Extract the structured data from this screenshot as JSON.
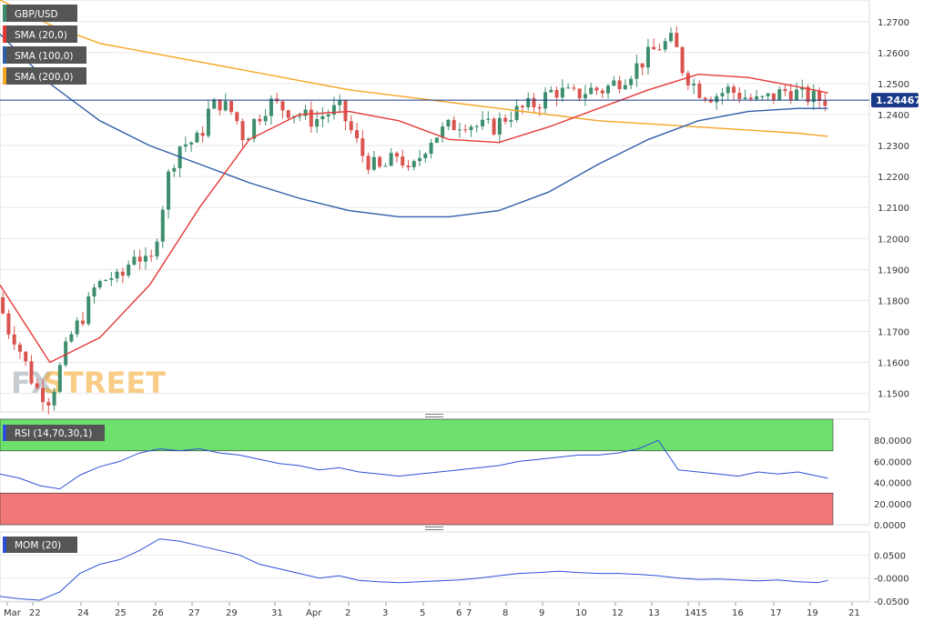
{
  "chart_data": {
    "type": "candlestick",
    "symbol": "GBP/USD",
    "current_price": "1.24467",
    "watermark": {
      "part1": "FX",
      "part2": "STREET"
    },
    "colors": {
      "bull": "#3e8e6e",
      "bear": "#d9534f",
      "sma20": "#e53935",
      "sma100": "#2f5da8",
      "sma200": "#f5a623",
      "rsi_line": "#2d4fd8",
      "mom_line": "#2d4fd8",
      "overbought_zone": "#6ee06e",
      "oversold_zone": "#f07878",
      "price_line": "#1a3a8a",
      "grid": "#e8e8e8",
      "legend_bg": "#555555"
    },
    "x_labels": [
      "Mar",
      "22",
      "24",
      "25",
      "26",
      "27",
      "29",
      "31",
      "Apr",
      "2",
      "3",
      "5",
      "6",
      "7",
      "8",
      "9",
      "10",
      "12",
      "13",
      "14",
      "15",
      "16",
      "17",
      "19",
      "21"
    ],
    "main": {
      "legend": [
        {
          "label": "GBP/USD",
          "color": "#3e8e6e"
        },
        {
          "label": "SMA (20,0)",
          "color": "#e53935"
        },
        {
          "label": "SMA (100,0)",
          "color": "#2f5da8"
        },
        {
          "label": "SMA (200,0)",
          "color": "#f5a623"
        }
      ],
      "ylim": [
        1.144,
        1.277
      ],
      "yticks": [
        "1.2700",
        "1.2600",
        "1.2500",
        "1.2400",
        "1.2300",
        "1.2200",
        "1.2100",
        "1.2000",
        "1.1900",
        "1.1800",
        "1.1700",
        "1.1600",
        "1.1500"
      ],
      "close_path": [
        1.181,
        1.172,
        1.168,
        1.16,
        1.152,
        1.148,
        1.158,
        1.168,
        1.176,
        1.184,
        1.188,
        1.186,
        1.196,
        1.19,
        1.206,
        1.222,
        1.23,
        1.232,
        1.242,
        1.244,
        1.24,
        1.232,
        1.238,
        1.244,
        1.242,
        1.24,
        1.238,
        1.24,
        1.242,
        1.236,
        1.226,
        1.222,
        1.224,
        1.228,
        1.22,
        1.226,
        1.232,
        1.236,
        1.238,
        1.236,
        1.236,
        1.24,
        1.242,
        1.244,
        1.248,
        1.246,
        1.248,
        1.248,
        1.252,
        1.256,
        1.262,
        1.264,
        1.254,
        1.248,
        1.246,
        1.248,
        1.246,
        1.244,
        1.246,
        1.248,
        1.246,
        1.245,
        1.2447
      ],
      "close_path_x": [
        0,
        0.1,
        0.3,
        0.5,
        0.7,
        1.0,
        1.2,
        1.4,
        1.7,
        1.9,
        2.2,
        2.4,
        2.7,
        3.0,
        3.2,
        3.4,
        3.6,
        4.0,
        4.2,
        4.4,
        4.7,
        4.9,
        5.1,
        5.4,
        5.7,
        6.0,
        6.3,
        6.5,
        6.8,
        7.0,
        7.3,
        7.6,
        7.8,
        8.0,
        8.2,
        8.4,
        8.6,
        9.0,
        9.3,
        9.6,
        9.9,
        10.2,
        10.5,
        10.8,
        11.1,
        11.5,
        11.8,
        12.1,
        12.5,
        12.8,
        13.2,
        13.5,
        13.7,
        14.0,
        14.3,
        14.6,
        14.9,
        15.2,
        15.5,
        15.8,
        16.1,
        16.4,
        16.6
      ],
      "x_span": [
        0,
        16.7
      ],
      "sma20": {
        "x": [
          0,
          1,
          2,
          3,
          4,
          5,
          6,
          7,
          8,
          9,
          10,
          11,
          12,
          13,
          14,
          15,
          16,
          16.6
        ],
        "y": [
          1.185,
          1.16,
          1.168,
          1.185,
          1.21,
          1.232,
          1.24,
          1.241,
          1.238,
          1.232,
          1.231,
          1.236,
          1.242,
          1.248,
          1.253,
          1.252,
          1.249,
          1.247
        ]
      },
      "sma100": {
        "x": [
          0,
          1,
          2,
          3,
          4,
          5,
          6,
          7,
          8,
          9,
          10,
          11,
          12,
          13,
          14,
          15,
          16,
          16.6
        ],
        "y": [
          1.266,
          1.25,
          1.238,
          1.23,
          1.224,
          1.218,
          1.213,
          1.209,
          1.207,
          1.207,
          1.209,
          1.215,
          1.224,
          1.232,
          1.238,
          1.241,
          1.242,
          1.242
        ]
      },
      "sma200": {
        "x": [
          0,
          1,
          2,
          3,
          4,
          5,
          6,
          7,
          8,
          9,
          10,
          11,
          12,
          13,
          14,
          15,
          16,
          16.6
        ],
        "y": [
          1.277,
          1.269,
          1.263,
          1.26,
          1.257,
          1.254,
          1.251,
          1.248,
          1.246,
          1.244,
          1.242,
          1.24,
          1.238,
          1.237,
          1.236,
          1.235,
          1.234,
          1.233
        ]
      }
    },
    "rsi": {
      "legend": "RSI (14,70,30,1)",
      "ylim": [
        0,
        100
      ],
      "overbought": 70,
      "oversold": 30,
      "yticks": [
        "80.0000",
        "60.0000",
        "40.0000",
        "20.0000",
        "0.0000"
      ],
      "x": [
        0,
        0.4,
        0.8,
        1.2,
        1.6,
        2.0,
        2.4,
        2.8,
        3.2,
        3.6,
        4.0,
        4.4,
        4.8,
        5.2,
        5.6,
        6.0,
        6.4,
        6.8,
        7.2,
        7.6,
        8.0,
        8.4,
        8.8,
        9.2,
        9.6,
        10.0,
        10.4,
        10.8,
        11.2,
        11.6,
        12.0,
        12.4,
        12.8,
        13.2,
        13.6,
        14.0,
        14.4,
        14.8,
        15.2,
        15.6,
        16.0,
        16.4,
        16.6
      ],
      "y": [
        48,
        44,
        37,
        34,
        47,
        55,
        60,
        68,
        72,
        70,
        72,
        68,
        66,
        62,
        58,
        56,
        52,
        54,
        50,
        48,
        46,
        48,
        50,
        52,
        54,
        56,
        60,
        62,
        64,
        66,
        66,
        68,
        72,
        80,
        52,
        50,
        48,
        46,
        50,
        48,
        50,
        46,
        44
      ]
    },
    "mom": {
      "legend": "MOM (20)",
      "ylim": [
        -0.052,
        0.1
      ],
      "yticks": [
        "0.0500",
        "-0.0000",
        "-0.0500"
      ],
      "x": [
        0,
        0.4,
        0.8,
        1.2,
        1.6,
        2.0,
        2.4,
        2.8,
        3.2,
        3.6,
        4.0,
        4.4,
        4.8,
        5.2,
        5.6,
        6.0,
        6.4,
        6.8,
        7.2,
        7.6,
        8.0,
        8.4,
        8.8,
        9.2,
        9.6,
        10.0,
        10.4,
        10.8,
        11.2,
        11.6,
        12.0,
        12.4,
        12.8,
        13.2,
        13.6,
        14.0,
        14.4,
        14.8,
        15.2,
        15.6,
        16.0,
        16.4,
        16.6
      ],
      "y": [
        -0.04,
        -0.045,
        -0.048,
        -0.03,
        0.01,
        0.03,
        0.04,
        0.06,
        0.085,
        0.08,
        0.07,
        0.06,
        0.05,
        0.03,
        0.02,
        0.01,
        0.0,
        0.005,
        -0.005,
        -0.008,
        -0.01,
        -0.008,
        -0.006,
        -0.004,
        0.0,
        0.005,
        0.01,
        0.012,
        0.015,
        0.012,
        0.01,
        0.01,
        0.008,
        0.005,
        0.0,
        -0.003,
        -0.002,
        -0.004,
        -0.006,
        -0.004,
        -0.008,
        -0.01,
        -0.005
      ]
    }
  }
}
